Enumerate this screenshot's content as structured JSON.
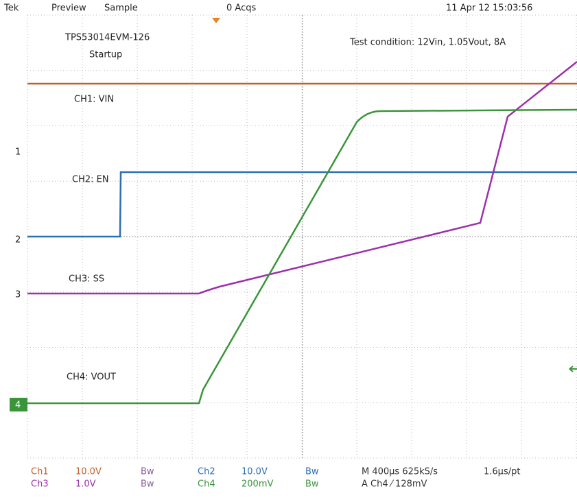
{
  "header": {
    "items": [
      "Tek",
      "Preview",
      "Sample"
    ],
    "acqs": "0 Acqs",
    "timestamp": "11 Apr 12 15:03:56"
  },
  "annotations": {
    "board": "TPS53014EVM-126",
    "mode": "Startup",
    "condition": "Test condition: 12Vin, 1.05Vout, 8A"
  },
  "channel_labels": [
    "CH1: VIN",
    "CH2: EN",
    "CH3: SS",
    "CH4: VOUT"
  ],
  "markers": [
    "1",
    "2",
    "3",
    "4"
  ],
  "footer": {
    "rows": [
      [
        "Ch1",
        "10.0V",
        "Bw",
        "Ch2",
        "10.0V",
        "Bw",
        "M 400µs 625kS/s",
        "1.6µs/pt"
      ],
      [
        "Ch3",
        "1.0V",
        "Bw",
        "Ch4",
        "200mV",
        "Bw",
        "A  Ch4  ⁄  128mV"
      ]
    ]
  }
}
